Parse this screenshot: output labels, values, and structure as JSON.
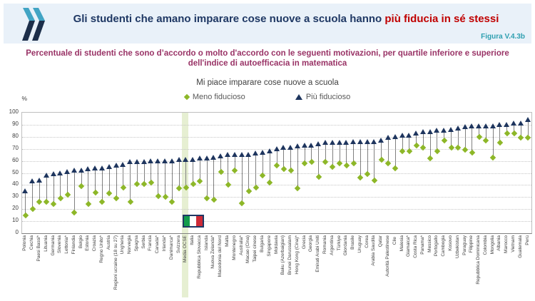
{
  "header": {
    "title_main": "Gli studenti che amano imparare cose nuove a scuola hanno",
    "title_accent": "più fiducia in sé stessi",
    "figure_label": "Figura V.4.3b"
  },
  "subtitle": "Percentuale di studenti che sono d’accordo o molto d'accordo con le seguenti motivazioni, per quartile inferiore e superiore dell'indice di autoefficacia in matematica",
  "chart_data": {
    "type": "scatter",
    "subtype": "dumbbell",
    "title": "Mi piace imparare cose nuove a scuola",
    "ylabel": "%",
    "ylim": [
      0,
      100
    ],
    "ytick_step": 10,
    "grid": true,
    "legend_position": "top",
    "legend": [
      {
        "label": "Meno fiducioso",
        "marker": "diamond",
        "color": "#8DB728"
      },
      {
        "label": "Più fiducioso",
        "marker": "triangle",
        "color": "#1E355E"
      }
    ],
    "highlight": {
      "category": "Media OCSE",
      "color": "#E6EFD2"
    },
    "flag": {
      "category": "Italia",
      "name": "italy-flag",
      "colors": [
        "#129C4B",
        "#FFFFFF",
        "#CE2B37"
      ],
      "border": "#1F3864"
    },
    "categories": [
      "Polonia",
      "Cechia",
      "Paesi Bassi*",
      "Lituania",
      "Germania",
      "Slovenia",
      "Lettonia*",
      "Finlandia",
      "Belgio",
      "Estonia",
      "Croazia",
      "Regno Unito*",
      "Austria",
      "Regioni ucraine (18 su 27)",
      "Ungheria",
      "Norvegia",
      "Spagna",
      "Serbia",
      "Francia",
      "Canada*",
      "Irlanda*",
      "Danimarca*",
      "Svizzera",
      "Media OCSE",
      "Italia",
      "Repubblica Slovacca",
      "Islanda",
      "Nuova Zelanda*",
      "Macedonia del Nord",
      "Malta",
      "Montenegro",
      "Australia*",
      "Macao (Cina)",
      "Taipei cinese",
      "Bulgaria",
      "Singapore",
      "Moldavia",
      "Baku (Azerbaigian)",
      "Brunei Darussalam",
      "Hong Kong (Cina)*",
      "Grecia",
      "Georgia",
      "Emirati Arabi Uniti",
      "Romania",
      "Argentina",
      "Türkiye",
      "Giordania",
      "Brasile",
      "Uruguay",
      "Corea",
      "Arabia Saudita",
      "Qatar",
      "Autorità Palestinese",
      "Cile",
      "Malesia",
      "Giamaica*",
      "Costa Rica",
      "Panama*",
      "Messico",
      "Portogallo",
      "Cambogia",
      "Kosovo",
      "Uzbekistan",
      "Paraguay",
      "Filippine",
      "Repubblica Dominicana",
      "Colombia",
      "Mongolia",
      "Albania",
      "Marocco",
      "Vietnam",
      "Guatemala",
      "Perù"
    ],
    "series": [
      {
        "name": "Meno fiducioso",
        "values": [
          15,
          20,
          26,
          26,
          24,
          29,
          32,
          17,
          39,
          24,
          34,
          26,
          33,
          29,
          38,
          26,
          41,
          41,
          42,
          31,
          30,
          26,
          37,
          38,
          41,
          43,
          29,
          28,
          51,
          40,
          52,
          25,
          35,
          38,
          48,
          42,
          56,
          53,
          52,
          37,
          58,
          59,
          47,
          59,
          55,
          58,
          56,
          58,
          46,
          49,
          44,
          61,
          58,
          54,
          68,
          68,
          73,
          71,
          62,
          68,
          77,
          71,
          71,
          69,
          67,
          80,
          77,
          63,
          75,
          83,
          83,
          79,
          79
        ]
      },
      {
        "name": "Più fiducioso",
        "values": [
          35,
          43,
          44,
          48,
          49,
          50,
          51,
          52,
          52,
          53,
          54,
          54,
          55,
          56,
          57,
          59,
          59,
          59,
          60,
          60,
          60,
          60,
          61,
          61,
          61,
          62,
          62,
          63,
          64,
          65,
          65,
          65,
          65,
          66,
          67,
          68,
          70,
          71,
          71,
          72,
          73,
          73,
          74,
          75,
          75,
          75,
          75,
          76,
          76,
          76,
          76,
          77,
          79,
          80,
          81,
          81,
          83,
          84,
          84,
          85,
          85,
          86,
          87,
          88,
          89,
          89,
          89,
          89,
          90,
          90,
          91,
          91,
          94
        ]
      }
    ]
  },
  "colors": {
    "header_bg": "#E9F1F9",
    "title_navy": "#1F3864",
    "title_red": "#C00000",
    "figura_teal": "#2E9FB0",
    "subtitle_purple": "#993366",
    "logo_teal": "#41A4C4",
    "logo_navy": "#1C2E4A",
    "gridline": "#C6C6C6",
    "connector": "#808080"
  }
}
